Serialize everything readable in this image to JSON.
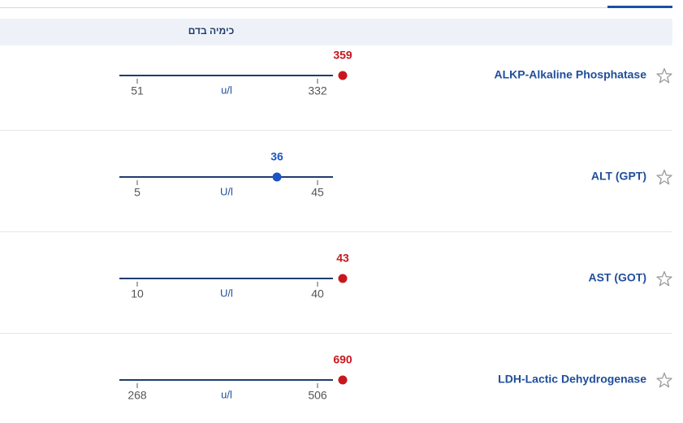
{
  "section_title": "כימיה בדם",
  "tests": [
    {
      "name": "ALKP-Alkaline Phosphatase",
      "value": 359,
      "unit": "u/l",
      "low": 51,
      "high": 332
    },
    {
      "name": "ALT (GPT)",
      "value": 36,
      "unit": "U/l",
      "low": 5,
      "high": 45
    },
    {
      "name": "AST (GOT)",
      "value": 43,
      "unit": "U/l",
      "low": 10,
      "high": 40
    },
    {
      "name": "LDH-Lactic Dehydrogenase",
      "value": 690,
      "unit": "u/l",
      "low": 268,
      "high": 506
    }
  ]
}
